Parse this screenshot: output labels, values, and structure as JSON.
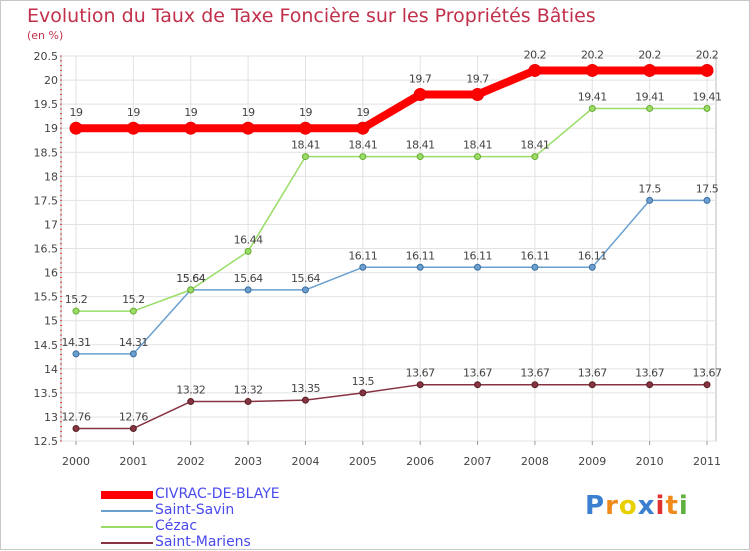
{
  "header": {
    "title": "Evolution du Taux de Taxe Foncière sur les Propriétés Bâties",
    "subtitle": "(en %)"
  },
  "logo": {
    "text": "Proxiti"
  },
  "chart_data": {
    "type": "line",
    "x": [
      "2000",
      "2001",
      "2002",
      "2003",
      "2004",
      "2005",
      "2006",
      "2007",
      "2008",
      "2009",
      "2010",
      "2011"
    ],
    "ylim": [
      12.5,
      20.5
    ],
    "yticks": [
      "12.5",
      "13",
      "13.5",
      "14",
      "14.5",
      "15",
      "15.5",
      "16",
      "16.5",
      "17",
      "17.5",
      "18",
      "18.5",
      "19",
      "19.5",
      "20",
      "20.5"
    ],
    "legend_position": "bottom-left",
    "grid": true,
    "series": [
      {
        "name": "CIVRAC-DE-BLAYE",
        "color": "#ff0000",
        "values": [
          19,
          19,
          19,
          19,
          19,
          19,
          19.7,
          19.7,
          20.2,
          20.2,
          20.2,
          20.2
        ],
        "labels": [
          "19",
          "19",
          "19",
          "19",
          "19",
          "19",
          "19.7",
          "19.7",
          "20.2",
          "20.2",
          "20.2",
          "20.2"
        ]
      },
      {
        "name": "Saint-Savin",
        "color": "#6a9fd0",
        "values": [
          14.31,
          14.31,
          15.64,
          15.64,
          15.64,
          16.11,
          16.11,
          16.11,
          16.11,
          16.11,
          17.5,
          17.5
        ],
        "labels": [
          "14.31",
          "14.31",
          "15.64",
          "15.64",
          "15.64",
          "16.11",
          "16.11",
          "16.11",
          "16.11",
          "16.11",
          "17.5",
          "17.5"
        ]
      },
      {
        "name": "Cézac",
        "color": "#99dd66",
        "values": [
          15.2,
          15.2,
          15.64,
          16.44,
          18.41,
          18.41,
          18.41,
          18.41,
          18.41,
          19.41,
          19.41,
          19.41
        ],
        "labels": [
          "15.2",
          "15.2",
          "15.64",
          "16.44",
          "18.41",
          "18.41",
          "18.41",
          "18.41",
          "18.41",
          "19.41",
          "19.41",
          "19.41"
        ]
      },
      {
        "name": "Saint-Mariens",
        "color": "#883344",
        "values": [
          12.76,
          12.76,
          13.32,
          13.32,
          13.35,
          13.5,
          13.67,
          13.67,
          13.67,
          13.67,
          13.67,
          13.67
        ],
        "labels": [
          "12.76",
          "12.76",
          "13.32",
          "13.32",
          "13.35",
          "13.5",
          "13.67",
          "13.67",
          "13.67",
          "13.67",
          "13.67",
          "13.67"
        ]
      }
    ]
  }
}
